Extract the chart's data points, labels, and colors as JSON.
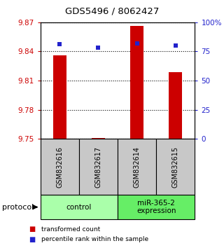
{
  "title": "GDS5496 / 8062427",
  "samples": [
    "GSM832616",
    "GSM832617",
    "GSM832614",
    "GSM832615"
  ],
  "red_values": [
    9.836,
    9.751,
    9.866,
    9.819
  ],
  "blue_values": [
    81,
    78,
    82,
    80
  ],
  "ylim_left": [
    9.75,
    9.87
  ],
  "ylim_right": [
    0,
    100
  ],
  "yticks_left": [
    9.75,
    9.78,
    9.81,
    9.84,
    9.87
  ],
  "yticks_right": [
    0,
    25,
    50,
    75,
    100
  ],
  "ytick_labels_right": [
    "0",
    "25",
    "50",
    "75",
    "100%"
  ],
  "bar_color": "#cc0000",
  "marker_color": "#2222cc",
  "groups": [
    {
      "label": "control",
      "indices": [
        0,
        1
      ],
      "color": "#aaffaa"
    },
    {
      "label": "miR-365-2\nexpression",
      "indices": [
        2,
        3
      ],
      "color": "#66ee66"
    }
  ],
  "legend_items": [
    {
      "color": "#cc0000",
      "label": "transformed count"
    },
    {
      "color": "#2222cc",
      "label": "percentile rank within the sample"
    }
  ],
  "protocol_label": "protocol",
  "background_color": "#ffffff",
  "plot_area_color": "#ffffff",
  "sample_box_color": "#c8c8c8",
  "bar_width": 0.35
}
